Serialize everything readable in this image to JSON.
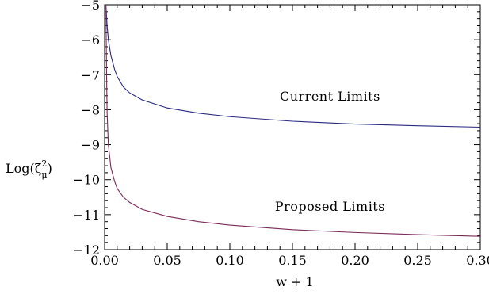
{
  "chart_data": {
    "type": "line",
    "xlabel": "w + 1",
    "ylabel": "Log(ζ²_μ)",
    "ylabel_parts": {
      "prefix": "Log(ζ",
      "superscript": "2",
      "subscript": "μ",
      "suffix": ")"
    },
    "xlim": [
      0.0,
      0.3
    ],
    "ylim": [
      -12,
      -5
    ],
    "x_ticks": [
      "0.00",
      "0.05",
      "0.10",
      "0.15",
      "0.20",
      "0.25",
      "0.30"
    ],
    "y_ticks": [
      "−5",
      "−6",
      "−7",
      "−8",
      "−9",
      "−10",
      "−11",
      "−12"
    ],
    "grid": false,
    "series": [
      {
        "label": "Current Limits",
        "color": "#2a2a80",
        "x": [
          0.001,
          0.002,
          0.003,
          0.005,
          0.008,
          0.01,
          0.015,
          0.02,
          0.03,
          0.05,
          0.075,
          0.1,
          0.15,
          0.2,
          0.25,
          0.3
        ],
        "y": [
          -5.0,
          -5.6,
          -6.0,
          -6.45,
          -6.85,
          -7.05,
          -7.35,
          -7.52,
          -7.72,
          -7.95,
          -8.1,
          -8.2,
          -8.33,
          -8.41,
          -8.46,
          -8.5
        ]
      },
      {
        "label": "Proposed Limits",
        "color": "#7a2a5a",
        "x": [
          0.001,
          0.0015,
          0.002,
          0.003,
          0.005,
          0.008,
          0.01,
          0.015,
          0.02,
          0.03,
          0.05,
          0.075,
          0.1,
          0.15,
          0.2,
          0.25,
          0.3
        ],
        "y": [
          -5.0,
          -6.8,
          -8.1,
          -9.0,
          -9.65,
          -10.05,
          -10.25,
          -10.5,
          -10.65,
          -10.85,
          -11.05,
          -11.2,
          -11.3,
          -11.43,
          -11.51,
          -11.57,
          -11.62
        ]
      }
    ],
    "annotations": [
      {
        "text": "Current Limits",
        "x": 0.18,
        "y": -7.6
      },
      {
        "text": "Proposed Limits",
        "x": 0.18,
        "y": -10.75
      }
    ]
  }
}
